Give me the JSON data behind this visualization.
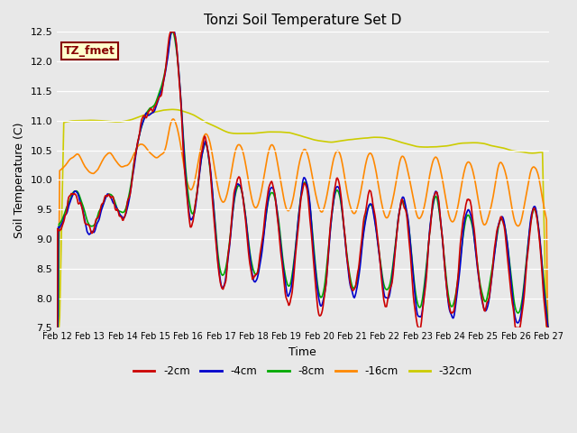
{
  "title": "Tonzi Soil Temperature Set D",
  "xlabel": "Time",
  "ylabel": "Soil Temperature (C)",
  "ylim": [
    7.5,
    12.5
  ],
  "yticks": [
    7.5,
    8.0,
    8.5,
    9.0,
    9.5,
    10.0,
    10.5,
    11.0,
    11.5,
    12.0,
    12.5
  ],
  "xtick_labels": [
    "Feb 12",
    "Feb 13",
    "Feb 14",
    "Feb 15",
    "Feb 16",
    "Feb 17",
    "Feb 18",
    "Feb 19",
    "Feb 20",
    "Feb 21",
    "Feb 22",
    "Feb 23",
    "Feb 24",
    "Feb 25",
    "Feb 26",
    "Feb 27"
  ],
  "legend_labels": [
    "-2cm",
    "-4cm",
    "-8cm",
    "-16cm",
    "-32cm"
  ],
  "colors": [
    "#cc0000",
    "#0000cc",
    "#00aa00",
    "#ff8800",
    "#cccc00"
  ],
  "linewidths": [
    1.2,
    1.2,
    1.2,
    1.2,
    1.2
  ],
  "annotation_text": "TZ_fmet",
  "annotation_color": "#880000",
  "annotation_bg": "#ffffcc",
  "annotation_border": "#880000",
  "fig_bg": "#e8e8e8",
  "ax_bg": "#e8e8e8"
}
